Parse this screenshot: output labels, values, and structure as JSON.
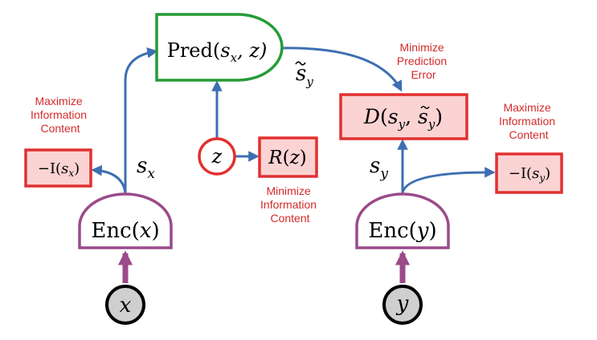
{
  "colors": {
    "arrow": "#3d6fb3",
    "encoder": "#9b4a8a",
    "predictor": "#259b37",
    "regularizer": "#e23030",
    "box_fill": "#fbd3d3",
    "input_fill": "#cfcfcf",
    "note_text": "#d42a2a"
  },
  "encoder_x": {
    "name": "Enc",
    "arg": "x"
  },
  "encoder_y": {
    "name": "Enc",
    "arg": "y"
  },
  "input_x": {
    "label": "x"
  },
  "input_y": {
    "label": "y"
  },
  "predictor": {
    "name": "Pred",
    "args": "s",
    "sub": "x",
    "tail": ", z)"
  },
  "latent": {
    "label": "z"
  },
  "regularizer": {
    "name": "R",
    "arg": "z"
  },
  "energy": {
    "name": "D",
    "s_sub": "y",
    "tilde_sub": "y"
  },
  "info_x": {
    "prefix": "−I(",
    "sym": "s",
    "sub": "x",
    "close": ")"
  },
  "info_y": {
    "prefix": "−I(",
    "sym": "s",
    "sub": "y",
    "close": ")"
  },
  "rep_x": {
    "sym": "s",
    "sub": "x"
  },
  "rep_y": {
    "sym": "s",
    "sub": "y"
  },
  "pred_out": {
    "sym": "s",
    "sub": "y"
  },
  "notes": {
    "max_info_left": [
      "Maximize",
      "Information",
      "Content"
    ],
    "max_info_right": [
      "Maximize",
      "Information",
      "Content"
    ],
    "min_pred_error": [
      "Minimize",
      "Prediction",
      "Error"
    ],
    "min_info": [
      "Minimize",
      "Information",
      "Content"
    ]
  }
}
